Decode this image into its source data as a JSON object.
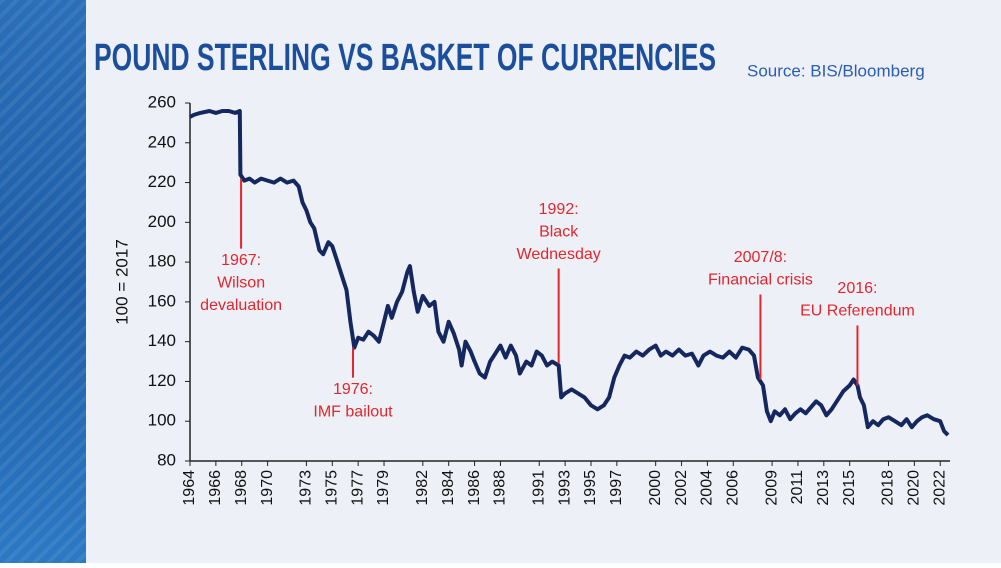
{
  "chart_data": {
    "type": "line",
    "title": "POUND STERLING VS BASKET OF CURRENCIES",
    "subtitle": "Source: BIS/Bloomberg",
    "y_label": "100 = 2017",
    "xlim": [
      1964,
      2022.6
    ],
    "xticks": [
      1964,
      1966,
      1968,
      1970,
      1973,
      1975,
      1977,
      1979,
      1982,
      1984,
      1986,
      1988,
      1991,
      1993,
      1995,
      1997,
      2000,
      2002,
      2004,
      2006,
      2009,
      2011,
      2013,
      2015,
      2018,
      2020,
      2022
    ],
    "ylim": [
      80,
      260
    ],
    "yticks": [
      80,
      100,
      120,
      140,
      160,
      180,
      200,
      220,
      240,
      260
    ],
    "x": [
      1964,
      1964.3,
      1964.8,
      1965.5,
      1966,
      1966.5,
      1967,
      1967.5,
      1967.85,
      1967.9,
      1968.2,
      1968.6,
      1969,
      1969.5,
      1970,
      1970.5,
      1971,
      1971.5,
      1972,
      1972.4,
      1972.7,
      1973,
      1973.3,
      1973.6,
      1974,
      1974.3,
      1974.7,
      1975,
      1975.4,
      1975.8,
      1976.1,
      1976.4,
      1976.7,
      1977,
      1977.4,
      1977.8,
      1978.2,
      1978.6,
      1979,
      1979.3,
      1979.6,
      1980,
      1980.4,
      1980.8,
      1981,
      1981.3,
      1981.6,
      1982,
      1982.5,
      1982.9,
      1983.2,
      1983.6,
      1984,
      1984.4,
      1984.8,
      1985,
      1985.3,
      1985.7,
      1986,
      1986.4,
      1986.8,
      1987.2,
      1987.6,
      1988,
      1988.4,
      1988.8,
      1989.2,
      1989.5,
      1990,
      1990.4,
      1990.8,
      1991.2,
      1991.6,
      1992,
      1992.5,
      1992.7,
      1993,
      1993.5,
      1994,
      1994.5,
      1995,
      1995.5,
      1996,
      1996.4,
      1996.8,
      1997.2,
      1997.6,
      1998,
      1998.5,
      1999,
      1999.5,
      2000,
      2000.4,
      2000.8,
      2001.3,
      2001.8,
      2002.3,
      2002.8,
      2003.3,
      2003.7,
      2004.2,
      2004.7,
      2005.2,
      2005.7,
      2006.2,
      2006.7,
      2007.2,
      2007.6,
      2007.9,
      2008.3,
      2008.6,
      2008.9,
      2009.2,
      2009.6,
      2010,
      2010.4,
      2010.8,
      2011.2,
      2011.6,
      2012,
      2012.4,
      2012.8,
      2013.2,
      2013.6,
      2014,
      2014.5,
      2015,
      2015.3,
      2015.6,
      2015.8,
      2016.1,
      2016.4,
      2016.8,
      2017.2,
      2017.6,
      2018,
      2018.5,
      2019,
      2019.4,
      2019.8,
      2020.2,
      2020.6,
      2021,
      2021.5,
      2022,
      2022.3,
      2022.6
    ],
    "series": [
      {
        "color": "#14285f",
        "values": [
          253,
          254,
          255,
          256,
          255,
          256,
          256,
          255,
          256,
          224,
          221,
          222,
          220,
          222,
          221,
          220,
          222,
          220,
          221,
          218,
          210,
          206,
          200,
          197,
          186,
          184,
          190,
          188,
          180,
          172,
          166,
          150,
          137,
          142,
          141,
          145,
          143,
          140,
          150,
          158,
          152,
          160,
          165,
          175,
          178,
          165,
          155,
          163,
          158,
          160,
          145,
          140,
          150,
          144,
          136,
          128,
          140,
          135,
          130,
          124,
          122,
          130,
          134,
          138,
          132,
          138,
          133,
          124,
          130,
          128,
          135,
          133,
          128,
          130,
          128,
          112,
          114,
          116,
          114,
          112,
          108,
          106,
          108,
          112,
          122,
          128,
          133,
          132,
          135,
          133,
          136,
          138,
          133,
          135,
          133,
          136,
          133,
          134,
          128,
          133,
          135,
          133,
          132,
          135,
          132,
          137,
          136,
          133,
          122,
          118,
          105,
          100,
          105,
          103,
          106,
          101,
          104,
          106,
          104,
          107,
          110,
          108,
          103,
          106,
          110,
          115,
          118,
          121,
          118,
          112,
          108,
          97,
          100,
          98,
          101,
          102,
          100,
          98,
          101,
          97,
          100,
          102,
          103,
          101,
          100,
          95,
          93
        ]
      }
    ],
    "annotations": [
      {
        "text": [
          "1967:",
          "Wilson",
          "devaluation"
        ],
        "x": 1967.95,
        "y": 222,
        "placement": "below",
        "color": "#e3262b"
      },
      {
        "text": [
          "1976:",
          "IMF bailout"
        ],
        "x": 1976.6,
        "y": 137,
        "placement": "below",
        "color": "#e3262b"
      },
      {
        "text": [
          "1992:",
          "Black",
          "Wednesday"
        ],
        "x": 1992.5,
        "y": 129,
        "placement": "above",
        "color": "#e3262b"
      },
      {
        "text": [
          "2007/8:",
          "Financial crisis"
        ],
        "x": 2008.1,
        "y": 121,
        "placement": "above",
        "color": "#e3262b"
      },
      {
        "text": [
          "2016:",
          "EU Referendum"
        ],
        "x": 2015.6,
        "y": 118,
        "placement": "above",
        "color": "#e3262b"
      }
    ]
  }
}
